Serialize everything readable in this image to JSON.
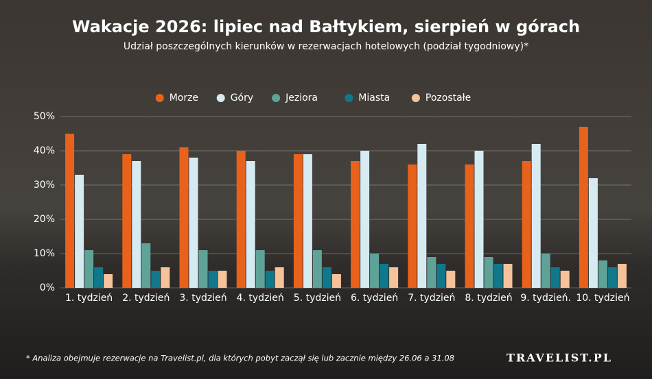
{
  "chart_data": {
    "type": "bar",
    "title": "Wakacje 2026: lipiec nad Bałtykiem, sierpień w górach",
    "subtitle": "Udział poszczególnych kierunków w rezerwacjach hotelowych (podział tygodniowy)*",
    "footnote": "* Analiza obejmuje rezerwacje na Travelist.pl, dla których pobyt zaczął się lub zacznie między 26.06 a 31.08",
    "brand": "TRAVELIST.PL",
    "categories": [
      "1. tydzień",
      "2. tydzień",
      "3. tydzień",
      "4. tydzień",
      "5. tydzień",
      "6. tydzień",
      "7. tydzień",
      "8. tydzień",
      "9. tydzień.",
      "10. tydzień"
    ],
    "series": [
      {
        "name": "Morze",
        "color": "#e8621c",
        "values": [
          45,
          39,
          41,
          40,
          39,
          37,
          36,
          36,
          37,
          47
        ]
      },
      {
        "name": "Góry",
        "color": "#d6eaf2",
        "values": [
          33,
          37,
          38,
          37,
          39,
          40,
          42,
          40,
          42,
          32
        ]
      },
      {
        "name": "Jeziora",
        "color": "#5fa398",
        "values": [
          11,
          13,
          11,
          11,
          11,
          10,
          9,
          9,
          10,
          8
        ]
      },
      {
        "name": "Miasta",
        "color": "#10788a",
        "values": [
          6,
          5,
          5,
          5,
          6,
          7,
          7,
          7,
          6,
          6
        ]
      },
      {
        "name": "Pozostałe",
        "color": "#f6c29a",
        "values": [
          4,
          6,
          5,
          6,
          4,
          6,
          5,
          7,
          5,
          7
        ]
      }
    ],
    "ylim": [
      0,
      50
    ],
    "yticks": [
      {
        "value": 0,
        "label": "0%"
      },
      {
        "value": 10,
        "label": "10%"
      },
      {
        "value": 20,
        "label": "20%"
      },
      {
        "value": 30,
        "label": "30%"
      },
      {
        "value": 40,
        "label": "40%"
      },
      {
        "value": 50,
        "label": "50%"
      }
    ],
    "grid": true
  }
}
